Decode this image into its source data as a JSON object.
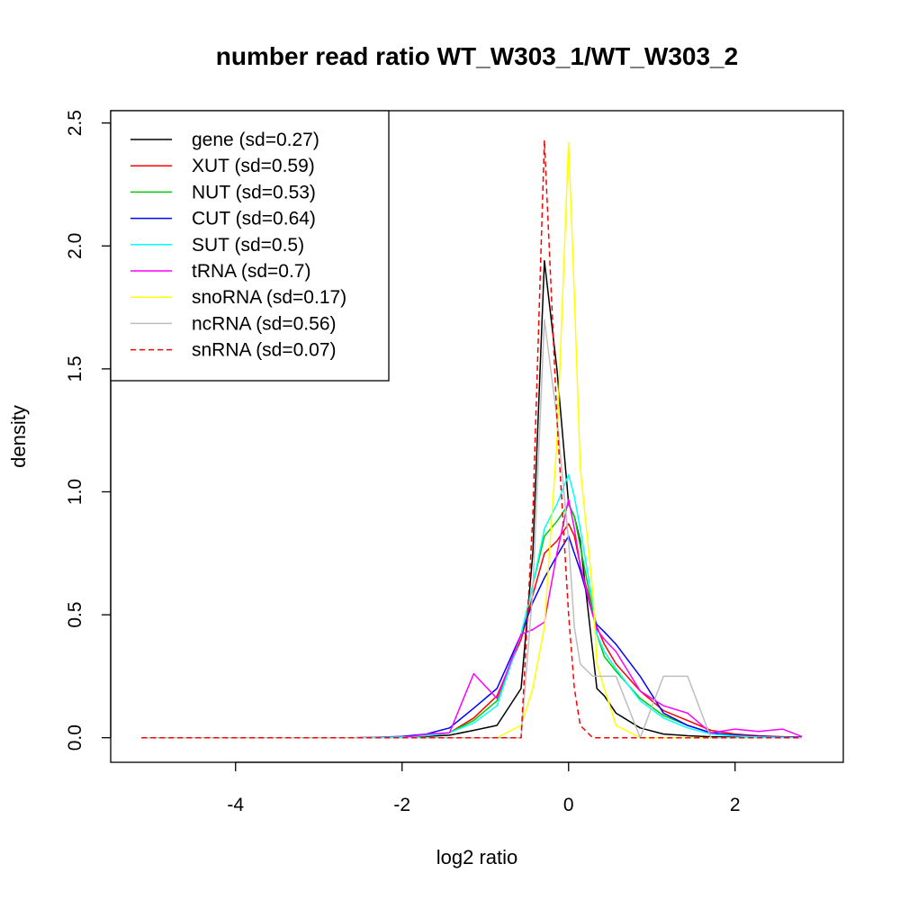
{
  "chart_data": {
    "type": "line",
    "title": "number read ratio WT_W303_1/WT_W303_2",
    "xlabel": "log2 ratio",
    "ylabel": "density",
    "xlim": [
      -5.5,
      3.3
    ],
    "ylim": [
      -0.1,
      2.55
    ],
    "xticks": [
      -4,
      -2,
      0,
      2
    ],
    "xtick_labels": [
      "-4",
      "-2",
      "0",
      "2"
    ],
    "yticks": [
      0.0,
      0.5,
      1.0,
      1.5,
      2.0,
      2.5
    ],
    "ytick_labels": [
      "0.0",
      "0.5",
      "1.0",
      "1.5",
      "2.0",
      "2.5"
    ],
    "legend_position": "top-left",
    "grid": false,
    "x": [
      -5.13,
      -4.85,
      -4.56,
      -4.28,
      -3.99,
      -3.71,
      -3.42,
      -3.14,
      -2.85,
      -2.57,
      -2.28,
      -2.0,
      -1.71,
      -1.43,
      -1.14,
      -0.86,
      -0.57,
      -0.43,
      -0.29,
      -0.14,
      0.0,
      0.07,
      0.14,
      0.29,
      0.34,
      0.43,
      0.57,
      0.86,
      1.14,
      1.43,
      1.71,
      2.0,
      2.28,
      2.57,
      2.8
    ],
    "series": [
      {
        "name": "gene (sd=0.27)",
        "color": "#000000",
        "dash": false,
        "values": [
          0,
          0,
          0,
          0,
          0,
          0,
          0,
          0,
          0,
          0,
          0,
          0,
          0.005,
          0.01,
          0.03,
          0.05,
          0.2,
          0.75,
          1.94,
          1.5,
          0.95,
          0.9,
          0.8,
          0.35,
          0.2,
          0.17,
          0.1,
          0.04,
          0.015,
          0.008,
          0.004,
          0.002,
          0.001,
          0.001,
          0
        ]
      },
      {
        "name": "XUT (sd=0.59)",
        "color": "#ff0000",
        "dash": false,
        "values": [
          0,
          0,
          0,
          0,
          0,
          0,
          0,
          0,
          0,
          0,
          0.002,
          0.004,
          0.01,
          0.02,
          0.08,
          0.17,
          0.4,
          0.58,
          0.75,
          0.8,
          0.87,
          0.82,
          0.7,
          0.52,
          0.45,
          0.38,
          0.3,
          0.19,
          0.11,
          0.07,
          0.03,
          0.015,
          0.008,
          0.004,
          0.002
        ]
      },
      {
        "name": "NUT (sd=0.53)",
        "color": "#00cc00",
        "dash": false,
        "values": [
          0,
          0,
          0,
          0,
          0,
          0,
          0,
          0,
          0,
          0,
          0,
          0.003,
          0.008,
          0.02,
          0.07,
          0.15,
          0.42,
          0.62,
          0.82,
          0.88,
          0.95,
          0.9,
          0.78,
          0.52,
          0.42,
          0.33,
          0.27,
          0.16,
          0.09,
          0.05,
          0.02,
          0.01,
          0.005,
          0.003,
          0.001
        ]
      },
      {
        "name": "CUT (sd=0.64)",
        "color": "#0000ff",
        "dash": false,
        "values": [
          0,
          0,
          0,
          0,
          0,
          0,
          0,
          0,
          0,
          0,
          0.002,
          0.005,
          0.015,
          0.04,
          0.12,
          0.2,
          0.42,
          0.55,
          0.65,
          0.74,
          0.82,
          0.75,
          0.68,
          0.5,
          0.46,
          0.43,
          0.38,
          0.25,
          0.1,
          0.05,
          0.02,
          0.01,
          0.006,
          0.003,
          0.002
        ]
      },
      {
        "name": "SUT (sd=0.5)",
        "color": "#00ffff",
        "dash": false,
        "values": [
          0,
          0,
          0,
          0,
          0,
          0,
          0,
          0,
          0,
          0,
          0.001,
          0.003,
          0.008,
          0.02,
          0.06,
          0.13,
          0.42,
          0.62,
          0.85,
          0.95,
          1.07,
          0.98,
          0.85,
          0.55,
          0.42,
          0.35,
          0.28,
          0.15,
          0.08,
          0.04,
          0.015,
          0.007,
          0.003,
          0.001,
          0
        ]
      },
      {
        "name": "tRNA (sd=0.7)",
        "color": "#ff00ff",
        "dash": false,
        "values": [
          0,
          0,
          0,
          0,
          0,
          0,
          0,
          0,
          0,
          0,
          0,
          0,
          0.015,
          0.02,
          0.26,
          0.16,
          0.42,
          0.44,
          0.47,
          0.75,
          0.97,
          0.85,
          0.7,
          0.5,
          0.44,
          0.4,
          0.35,
          0.19,
          0.13,
          0.1,
          0.02,
          0.035,
          0.025,
          0.035,
          0.005
        ]
      },
      {
        "name": "snoRNA (sd=0.17)",
        "color": "#ffff00",
        "dash": false,
        "values": [
          0,
          0,
          0,
          0,
          0,
          0,
          0,
          0,
          0,
          0,
          0,
          0,
          0,
          0,
          0,
          0,
          0.05,
          0.2,
          0.45,
          1.2,
          2.42,
          1.8,
          1.1,
          0.6,
          0.3,
          0.2,
          0.05,
          0,
          0,
          0,
          0,
          0,
          0,
          0,
          0
        ]
      },
      {
        "name": "ncRNA (sd=0.56)",
        "color": "#bebebe",
        "dash": false,
        "values": [
          0,
          0,
          0,
          0,
          0,
          0,
          0,
          0,
          0,
          0,
          0,
          0,
          0,
          0,
          0,
          0,
          0,
          0.6,
          1.7,
          1.3,
          0.8,
          0.45,
          0.3,
          0.25,
          0.25,
          0.25,
          0.25,
          0,
          0.25,
          0.25,
          0,
          0,
          0,
          0,
          0
        ]
      },
      {
        "name": "snRNA (sd=0.07)",
        "color": "#ff0000",
        "dash": true,
        "values": [
          0,
          0,
          0,
          0,
          0,
          0,
          0,
          0,
          0,
          0,
          0,
          0,
          0,
          0,
          0,
          0,
          0,
          0.9,
          2.43,
          1.3,
          0.5,
          0.2,
          0.05,
          0,
          0,
          0,
          0,
          0,
          0,
          0,
          0,
          0,
          0,
          0,
          0
        ]
      }
    ]
  }
}
